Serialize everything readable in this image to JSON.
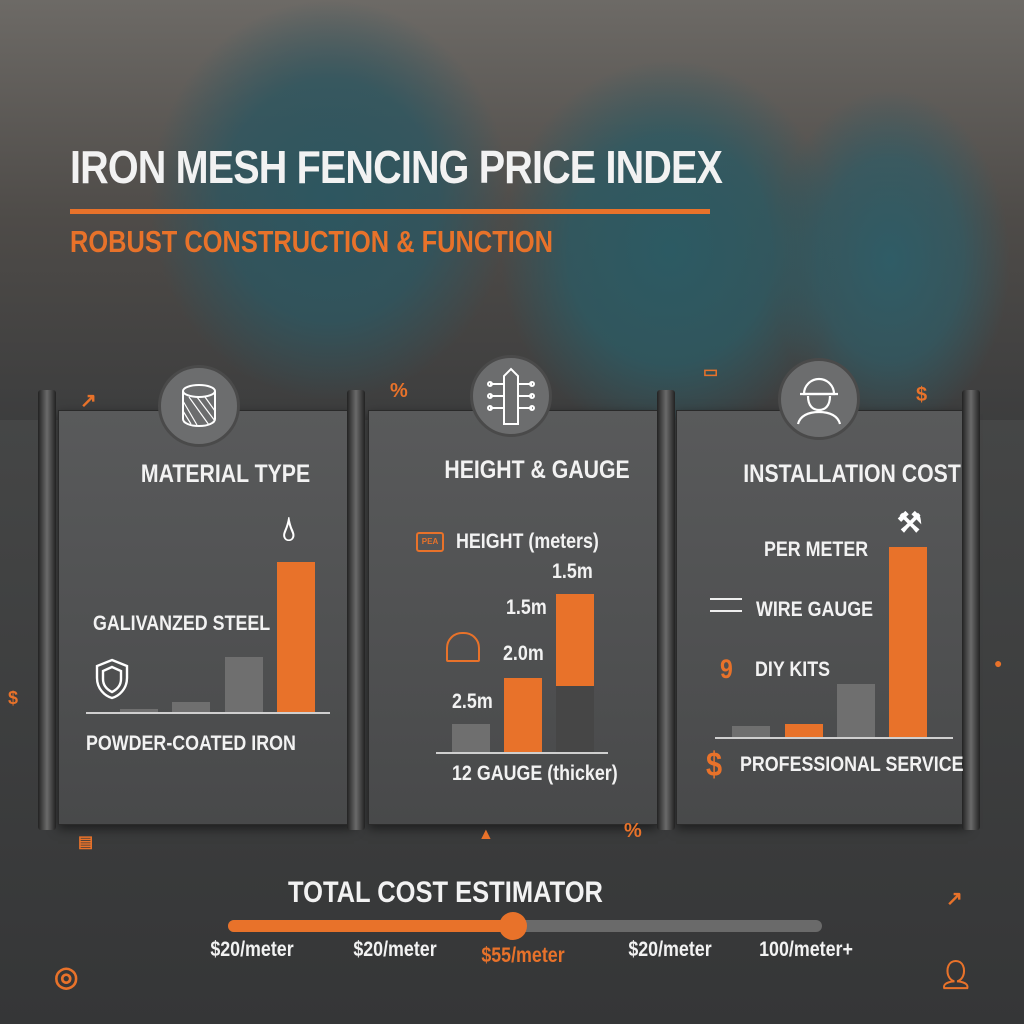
{
  "header": {
    "title": "IRON MESH FENCING PRICE INDEX",
    "subtitle": "ROBUST CONSTRUCTION & FUNCTION"
  },
  "colors": {
    "accent": "#e8722a",
    "bar_gray": "#6f6f6f",
    "bar_dark": "#464646"
  },
  "panels": [
    {
      "title": "MATERIAL TYPE",
      "icon": "mesh-roll-icon",
      "labels": {
        "top": "GALIVANZED STEEL",
        "bottom": "POWDER-COATED IRON"
      },
      "bars": [
        {
          "value": 2,
          "color": "gray"
        },
        {
          "value": 7,
          "color": "gray"
        },
        {
          "value": 37,
          "color": "gray"
        },
        {
          "value": 100,
          "color": "orange"
        }
      ]
    },
    {
      "title": "HEIGHT & GAUGE",
      "icon": "fence-post-icon",
      "labels": {
        "legend": "HEIGHT (meters)",
        "bottom": "12 GAUGE (thicker)",
        "bar1": "2.5m",
        "bar2": "2.0m",
        "bar2b": "1.5m",
        "bar3": "1.5m"
      },
      "bars": [
        {
          "value": 18,
          "color": "gray"
        },
        {
          "value": 47,
          "color": "orange"
        },
        {
          "value": 100,
          "segments": [
            {
              "value": 42,
              "color": "dark"
            },
            {
              "value": 58,
              "color": "orange"
            }
          ]
        }
      ]
    },
    {
      "title": "INSTALLATION COST",
      "icon": "worker-helmet-icon",
      "labels": {
        "l1": "PER METER",
        "l2": "WIRE GAUGE",
        "l3": "DIY KITS",
        "l3_prefix": "9",
        "bottom": "PROFESSIONAL SERVICE",
        "bottom_prefix": "$"
      },
      "bars": [
        {
          "value": 6,
          "color": "gray"
        },
        {
          "value": 7,
          "color": "orange"
        },
        {
          "value": 28,
          "color": "gray"
        },
        {
          "value": 100,
          "color": "orange"
        }
      ]
    }
  ],
  "estimator": {
    "title": "TOTAL COST ESTIMATOR",
    "value_percent": 48,
    "ticks": [
      {
        "label": "$20/meter",
        "active": false
      },
      {
        "label": "$20/meter",
        "active": false
      },
      {
        "label": "$55/meter",
        "active": true
      },
      {
        "label": "$20/meter",
        "active": false
      },
      {
        "label": "100/meter+",
        "active": false
      }
    ]
  },
  "decorations": {
    "percent": "%",
    "dollar": "$"
  }
}
